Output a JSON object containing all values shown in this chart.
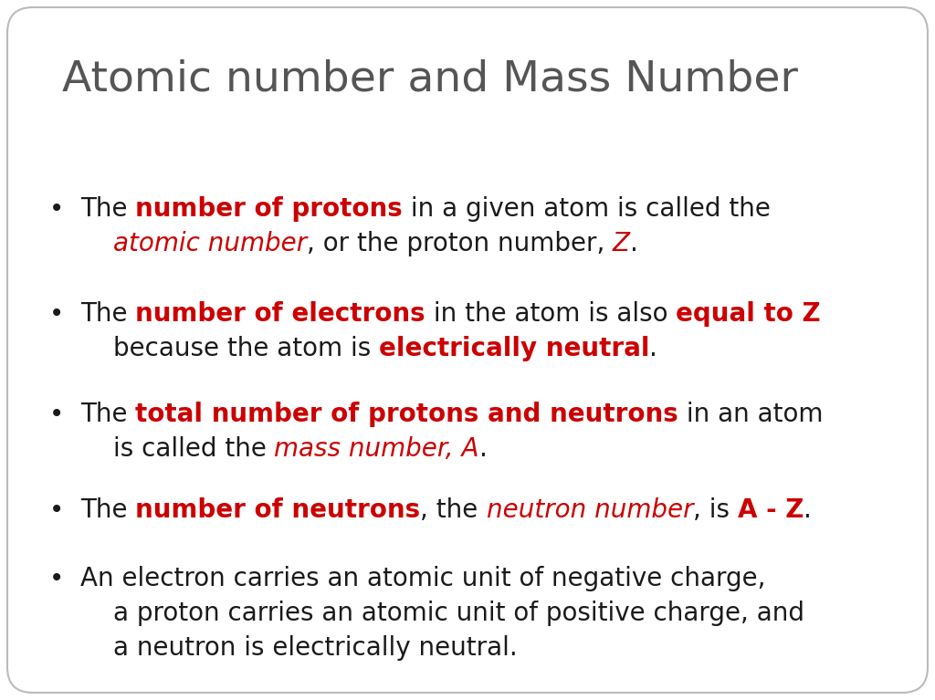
{
  "title": "Atomic number and Mass Number",
  "title_color": "#555555",
  "title_fontsize": 34,
  "background_color": "#ffffff",
  "border_color": "#bbbbbb",
  "text_color": "#1a1a1a",
  "red_color": "#cc0000",
  "body_fontsize": 20,
  "bullet_char": "•",
  "bullets": [
    [
      [
        {
          "text": "The ",
          "bold": false,
          "italic": false,
          "color": "#1a1a1a"
        },
        {
          "text": "number of protons",
          "bold": true,
          "italic": false,
          "color": "#cc0000"
        },
        {
          "text": " in a given atom is called the",
          "bold": false,
          "italic": false,
          "color": "#1a1a1a"
        }
      ],
      [
        {
          "text": "    ",
          "bold": false,
          "italic": false,
          "color": "#1a1a1a"
        },
        {
          "text": "atomic number",
          "bold": false,
          "italic": true,
          "color": "#cc0000"
        },
        {
          "text": ", or the proton number, ",
          "bold": false,
          "italic": false,
          "color": "#1a1a1a"
        },
        {
          "text": "Z",
          "bold": false,
          "italic": true,
          "color": "#cc0000"
        },
        {
          "text": ".",
          "bold": false,
          "italic": false,
          "color": "#1a1a1a"
        }
      ]
    ],
    [
      [
        {
          "text": "The ",
          "bold": false,
          "italic": false,
          "color": "#1a1a1a"
        },
        {
          "text": "number of electrons",
          "bold": true,
          "italic": false,
          "color": "#cc0000"
        },
        {
          "text": " in the atom is also ",
          "bold": false,
          "italic": false,
          "color": "#1a1a1a"
        },
        {
          "text": "equal to Z",
          "bold": true,
          "italic": false,
          "color": "#cc0000"
        }
      ],
      [
        {
          "text": "    because the atom is ",
          "bold": false,
          "italic": false,
          "color": "#1a1a1a"
        },
        {
          "text": "electrically neutral",
          "bold": true,
          "italic": false,
          "color": "#cc0000"
        },
        {
          "text": ".",
          "bold": false,
          "italic": false,
          "color": "#1a1a1a"
        }
      ]
    ],
    [
      [
        {
          "text": "The ",
          "bold": false,
          "italic": false,
          "color": "#1a1a1a"
        },
        {
          "text": "total number of protons and neutrons",
          "bold": true,
          "italic": false,
          "color": "#cc0000"
        },
        {
          "text": " in an atom",
          "bold": false,
          "italic": false,
          "color": "#1a1a1a"
        }
      ],
      [
        {
          "text": "    is called the ",
          "bold": false,
          "italic": false,
          "color": "#1a1a1a"
        },
        {
          "text": "mass number, A",
          "bold": false,
          "italic": true,
          "color": "#cc0000"
        },
        {
          "text": ".",
          "bold": false,
          "italic": false,
          "color": "#1a1a1a"
        }
      ]
    ],
    [
      [
        {
          "text": "The ",
          "bold": false,
          "italic": false,
          "color": "#1a1a1a"
        },
        {
          "text": "number of neutrons",
          "bold": true,
          "italic": false,
          "color": "#cc0000"
        },
        {
          "text": ", the ",
          "bold": false,
          "italic": false,
          "color": "#1a1a1a"
        },
        {
          "text": "neutron number",
          "bold": false,
          "italic": true,
          "color": "#cc0000"
        },
        {
          "text": ", is ",
          "bold": false,
          "italic": false,
          "color": "#1a1a1a"
        },
        {
          "text": "A - Z",
          "bold": true,
          "italic": false,
          "color": "#cc0000"
        },
        {
          "text": ".",
          "bold": false,
          "italic": false,
          "color": "#1a1a1a"
        }
      ]
    ],
    [
      [
        {
          "text": "An electron carries an atomic unit of negative charge,",
          "bold": false,
          "italic": false,
          "color": "#1a1a1a"
        }
      ],
      [
        {
          "text": "    a proton carries an atomic unit of positive charge, and",
          "bold": false,
          "italic": false,
          "color": "#1a1a1a"
        }
      ],
      [
        {
          "text": "    a neutron is electrically neutral.",
          "bold": false,
          "italic": false,
          "color": "#1a1a1a"
        }
      ]
    ]
  ]
}
